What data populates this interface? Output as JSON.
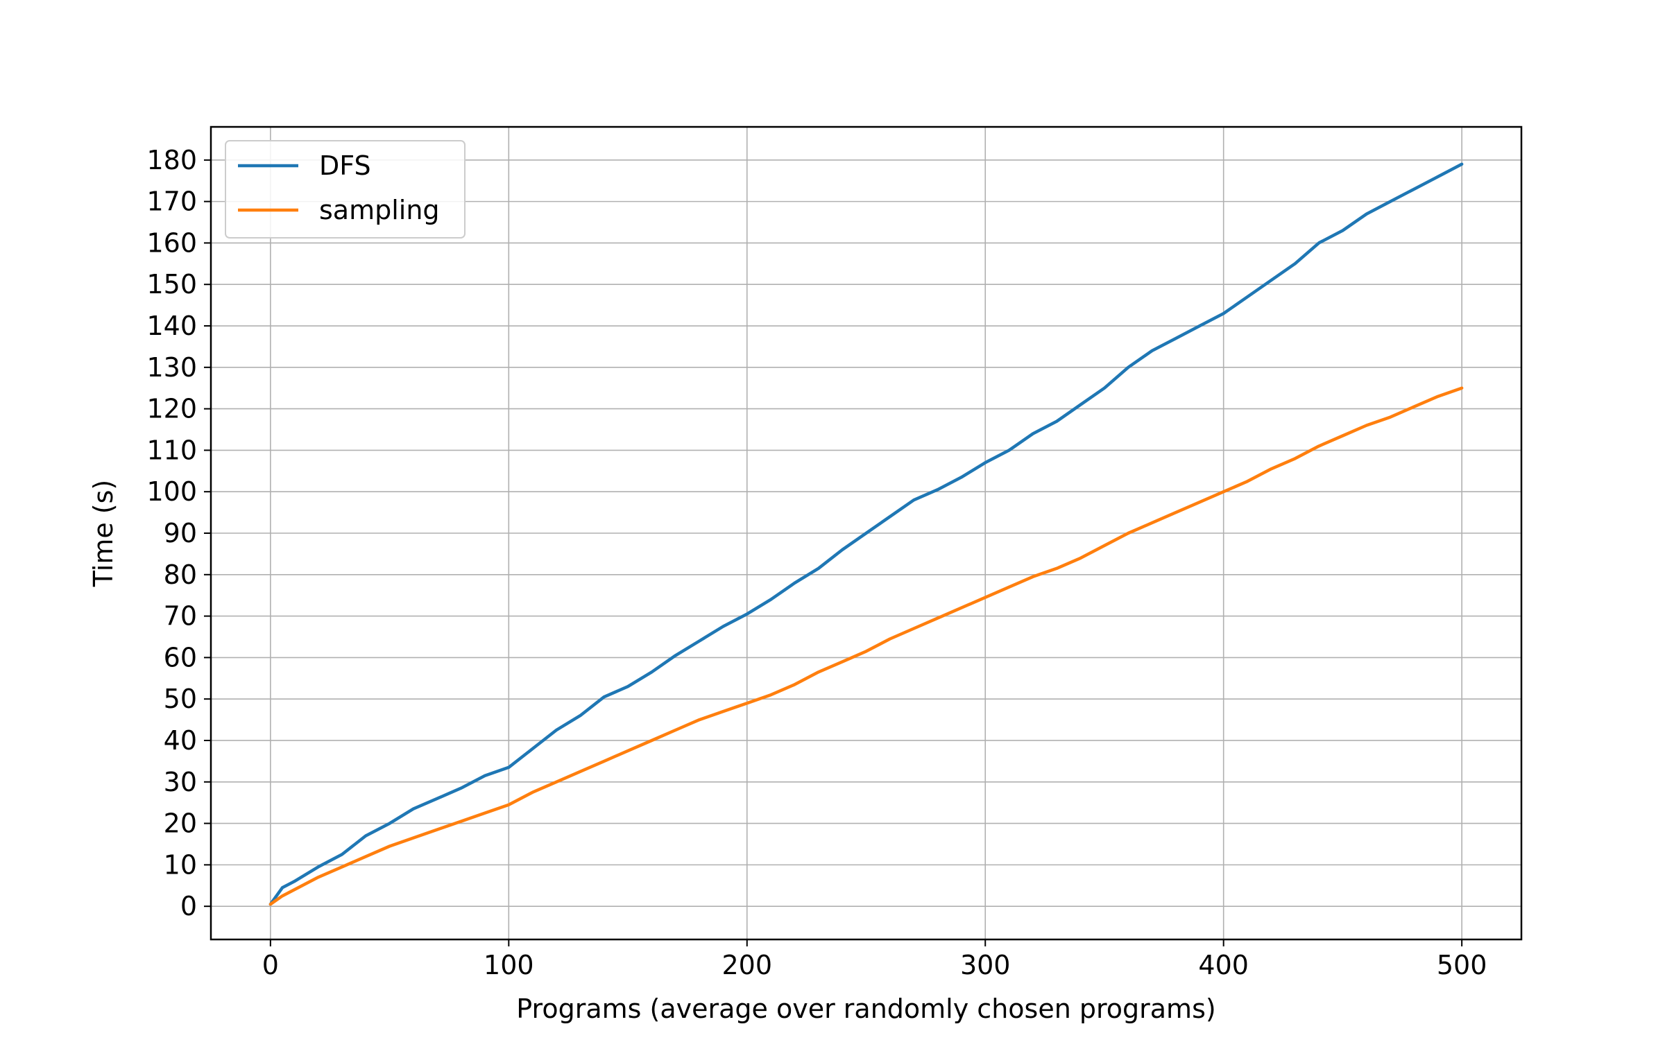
{
  "chart_data": {
    "type": "line",
    "title": "",
    "xlabel": "Programs (average over randomly chosen programs)",
    "ylabel": "Time (s)",
    "xlim": [
      -25,
      525
    ],
    "ylim": [
      -8,
      188
    ],
    "xticks": [
      0,
      100,
      200,
      300,
      400,
      500
    ],
    "yticks": [
      0,
      10,
      20,
      30,
      40,
      50,
      60,
      70,
      80,
      90,
      100,
      110,
      120,
      130,
      140,
      150,
      160,
      170,
      180
    ],
    "grid": true,
    "legend_position": "upper-left",
    "x": [
      0,
      5,
      10,
      20,
      30,
      40,
      50,
      60,
      70,
      80,
      90,
      100,
      110,
      120,
      130,
      140,
      150,
      160,
      170,
      180,
      190,
      200,
      210,
      220,
      230,
      240,
      250,
      260,
      270,
      280,
      290,
      300,
      310,
      320,
      330,
      340,
      350,
      360,
      370,
      380,
      390,
      400,
      410,
      420,
      430,
      440,
      450,
      460,
      470,
      480,
      490,
      500
    ],
    "series": [
      {
        "name": "DFS",
        "color": "#1f77b4",
        "values": [
          0.5,
          4.5,
          6,
          9.5,
          12.5,
          17,
          20,
          23.5,
          26,
          28.5,
          31.5,
          33.5,
          38,
          42.5,
          46,
          50.5,
          53,
          56.5,
          60.5,
          64,
          67.5,
          70.5,
          74,
          78,
          81.5,
          86,
          90,
          94,
          98,
          100.5,
          103.5,
          107,
          110,
          114,
          117,
          121,
          125,
          130,
          134,
          137,
          140,
          143,
          147,
          151,
          155,
          160,
          163,
          167,
          170,
          173,
          176,
          179
        ]
      },
      {
        "name": "sampling",
        "color": "#ff7f0e",
        "values": [
          0.5,
          2.5,
          4,
          7,
          9.5,
          12,
          14.5,
          16.5,
          18.5,
          20.5,
          22.5,
          24.5,
          27.5,
          30,
          32.5,
          35,
          37.5,
          40,
          42.5,
          45,
          47,
          49,
          51,
          53.5,
          56.5,
          59,
          61.5,
          64.5,
          67,
          69.5,
          72,
          74.5,
          77,
          79.5,
          81.5,
          84,
          87,
          90,
          92.5,
          95,
          97.5,
          100,
          102.5,
          105.5,
          108,
          111,
          113.5,
          116,
          118,
          120.5,
          123,
          125
        ]
      }
    ]
  }
}
